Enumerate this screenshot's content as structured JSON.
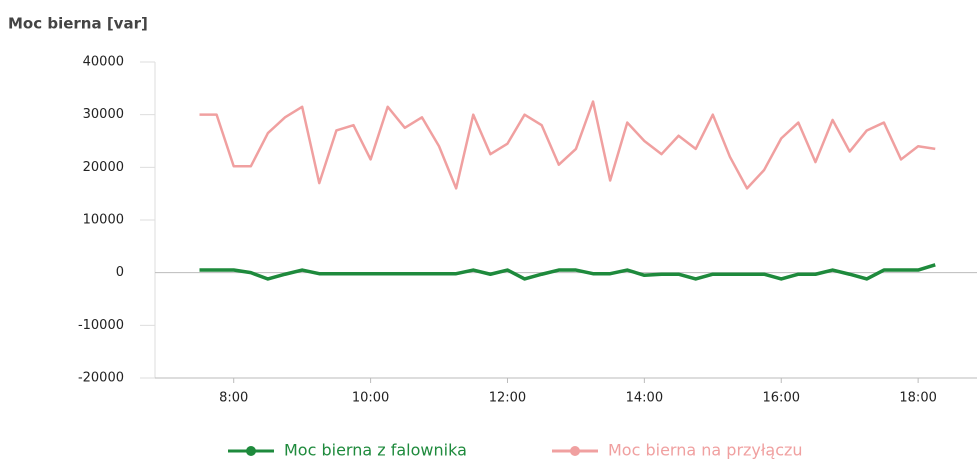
{
  "chart_data": {
    "type": "line",
    "title": "Moc bierna [var]",
    "x": [
      7.5,
      7.75,
      8,
      8.25,
      8.5,
      8.75,
      9,
      9.25,
      9.5,
      9.75,
      10,
      10.25,
      10.5,
      10.75,
      11,
      11.25,
      11.5,
      11.75,
      12,
      12.25,
      12.5,
      12.75,
      13,
      13.25,
      13.5,
      13.75,
      14,
      14.25,
      14.5,
      14.75,
      15,
      15.25,
      15.5,
      15.75,
      16,
      16.25,
      16.5,
      16.75,
      17,
      17.25,
      17.5,
      17.75,
      18,
      18.25
    ],
    "series": [
      {
        "name": "Moc bierna z falownika",
        "color": "#1e8a3c",
        "values": [
          500,
          500,
          500,
          0,
          -1200,
          -300,
          500,
          -200,
          -200,
          -200,
          -200,
          -200,
          -200,
          -200,
          -200,
          -200,
          500,
          -300,
          500,
          -1200,
          -300,
          500,
          500,
          -200,
          -200,
          500,
          -500,
          -300,
          -300,
          -1200,
          -300,
          -300,
          -300,
          -300,
          -1200,
          -300,
          -300,
          500,
          -300,
          -1200,
          500,
          500,
          500,
          1500
        ]
      },
      {
        "name": "Moc bierna na przyłączu",
        "color": "#f0a0a0",
        "values": [
          30000,
          30000,
          20200,
          20200,
          26500,
          29500,
          31500,
          17000,
          27000,
          28000,
          21500,
          31500,
          27500,
          29500,
          24000,
          16000,
          30000,
          22500,
          24500,
          30000,
          28000,
          20500,
          23500,
          32500,
          17500,
          28500,
          25000,
          22500,
          26000,
          23500,
          30000,
          22000,
          16000,
          19500,
          25500,
          28500,
          21000,
          29000,
          23000,
          27000,
          28500,
          21500,
          24000,
          23500
        ]
      }
    ],
    "xlim": [
      6.85,
      18.86
    ],
    "xticks": [
      {
        "value": 8,
        "label": "8:00"
      },
      {
        "value": 10,
        "label": "10:00"
      },
      {
        "value": 12,
        "label": "12:00"
      },
      {
        "value": 14,
        "label": "14:00"
      },
      {
        "value": 16,
        "label": "16:00"
      },
      {
        "value": 18,
        "label": "18:00"
      }
    ],
    "ylim": [
      -20000,
      40000
    ],
    "yticks": [
      -20000,
      -10000,
      0,
      10000,
      20000,
      30000,
      40000
    ]
  }
}
